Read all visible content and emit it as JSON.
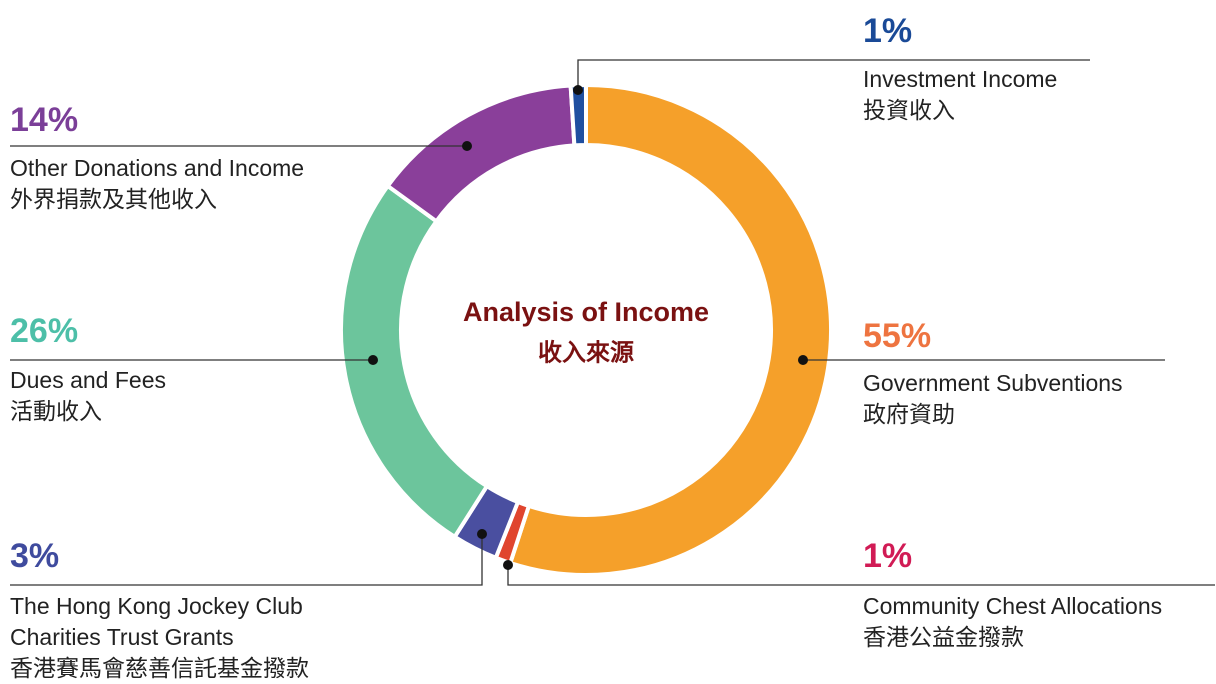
{
  "chart_data": {
    "type": "donut",
    "title": "Analysis of Income",
    "subtitle": "收入來源",
    "categories": [
      "Government Subventions",
      "Community Chest Allocations",
      "The Hong Kong Jockey Club Charities Trust Grants",
      "Dues and Fees",
      "Other Donations and Income",
      "Investment Income"
    ],
    "categories_zh": [
      "政府資助",
      "香港公益金撥款",
      "香港賽馬會慈善信託基金撥款",
      "活動收入",
      "外界捐款及其他收入",
      "投資收入"
    ],
    "values": [
      55,
      1,
      3,
      26,
      14,
      1
    ],
    "value_labels": [
      "55%",
      "1%",
      "3%",
      "26%",
      "14%",
      "1%"
    ],
    "colors": [
      "#f5a02a",
      "#e0452e",
      "#4a4fa0",
      "#6cc59c",
      "#8a3f9a",
      "#1f4fa0"
    ],
    "label_colors": [
      "#ee7440",
      "#d11b55",
      "#3f4b9e",
      "#4dbfa8",
      "#7b3f98",
      "#1a4a97"
    ]
  }
}
